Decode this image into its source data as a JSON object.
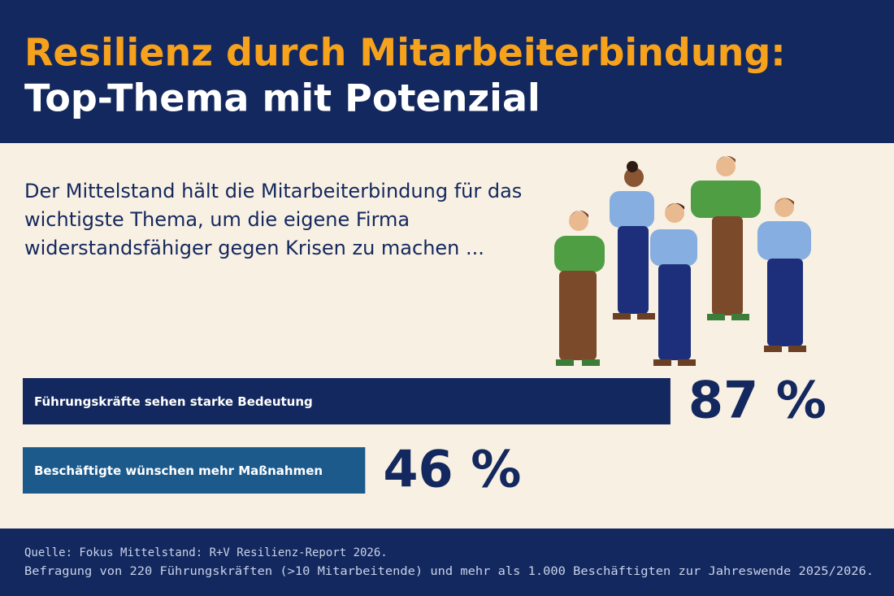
{
  "chart_data": {
    "type": "bar",
    "orientation": "horizontal",
    "title": "Resilienz durch Mitarbeiterbindung:",
    "subtitle": "Top-Thema mit Potenzial",
    "description": "Der Mittelstand hält die Mitarbeiterbindung für das wichtigste Thema, um die eigene Firma widerstandsfähiger gegen Krisen zu machen ...",
    "categories": [
      "Führungskräfte sehen starke Bedeutung",
      "Beschäftigte wünschen mehr Maßnahmen"
    ],
    "values": [
      87,
      46
    ],
    "value_labels": [
      "87 %",
      "46 %"
    ],
    "colors": [
      "#13285e",
      "#1d5a8c"
    ],
    "xlim": [
      0,
      100
    ],
    "source": "Quelle: Fokus Mittelstand: R+V Resilienz-Report 2026.",
    "note": "Befragung von 220 Führungskräften (>10 Mitarbeitende) und mehr als 1.000 Beschäftigten zur Jahreswende 2025/2026."
  }
}
